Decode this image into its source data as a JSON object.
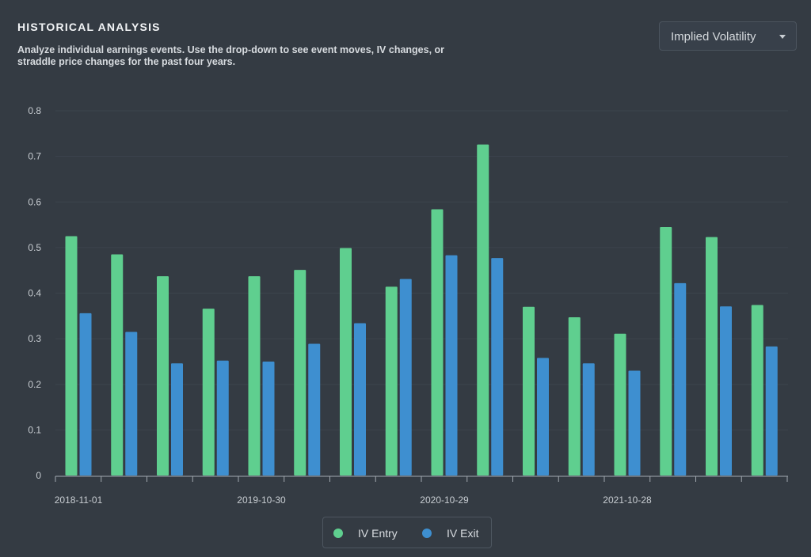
{
  "header": {
    "title": "HISTORICAL ANALYSIS",
    "subtitle": "Analyze individual earnings events. Use the drop-down to see event moves, IV changes, or straddle price changes for the past four years."
  },
  "dropdown": {
    "selected": "Implied Volatility",
    "icon": "caret-down-icon"
  },
  "colors": {
    "background": "#343b43",
    "entry": "#5fcf8f",
    "exit": "#3e8fd0",
    "axis": "#a2a9b0",
    "grid": "#3c444d",
    "text": "#c8cdd2"
  },
  "chart_data": {
    "type": "bar",
    "title": "",
    "xlabel": "",
    "ylabel": "",
    "ylim": [
      0,
      0.8
    ],
    "yticks": [
      "0",
      "0.1",
      "0.2",
      "0.3",
      "0.4",
      "0.5",
      "0.6",
      "0.7",
      "0.8"
    ],
    "grid": true,
    "legend_position": "bottom-center",
    "event_count": 16,
    "x_tick_labels": [
      {
        "event_index": 0,
        "label": "2018-11-01"
      },
      {
        "event_index": 4,
        "label": "2019-10-30"
      },
      {
        "event_index": 8,
        "label": "2020-10-29"
      },
      {
        "event_index": 12,
        "label": "2021-10-28"
      }
    ],
    "series": [
      {
        "name": "IV Entry",
        "color": "#5fcf8f",
        "values": [
          0.525,
          0.485,
          0.437,
          0.366,
          0.437,
          0.451,
          0.499,
          0.414,
          0.584,
          0.726,
          0.37,
          0.347,
          0.311,
          0.545,
          0.523,
          0.374
        ]
      },
      {
        "name": "IV Exit",
        "color": "#3e8fd0",
        "values": [
          0.356,
          0.315,
          0.246,
          0.252,
          0.25,
          0.289,
          0.334,
          0.431,
          0.483,
          0.477,
          0.258,
          0.246,
          0.23,
          0.422,
          0.371,
          0.283
        ]
      }
    ]
  }
}
